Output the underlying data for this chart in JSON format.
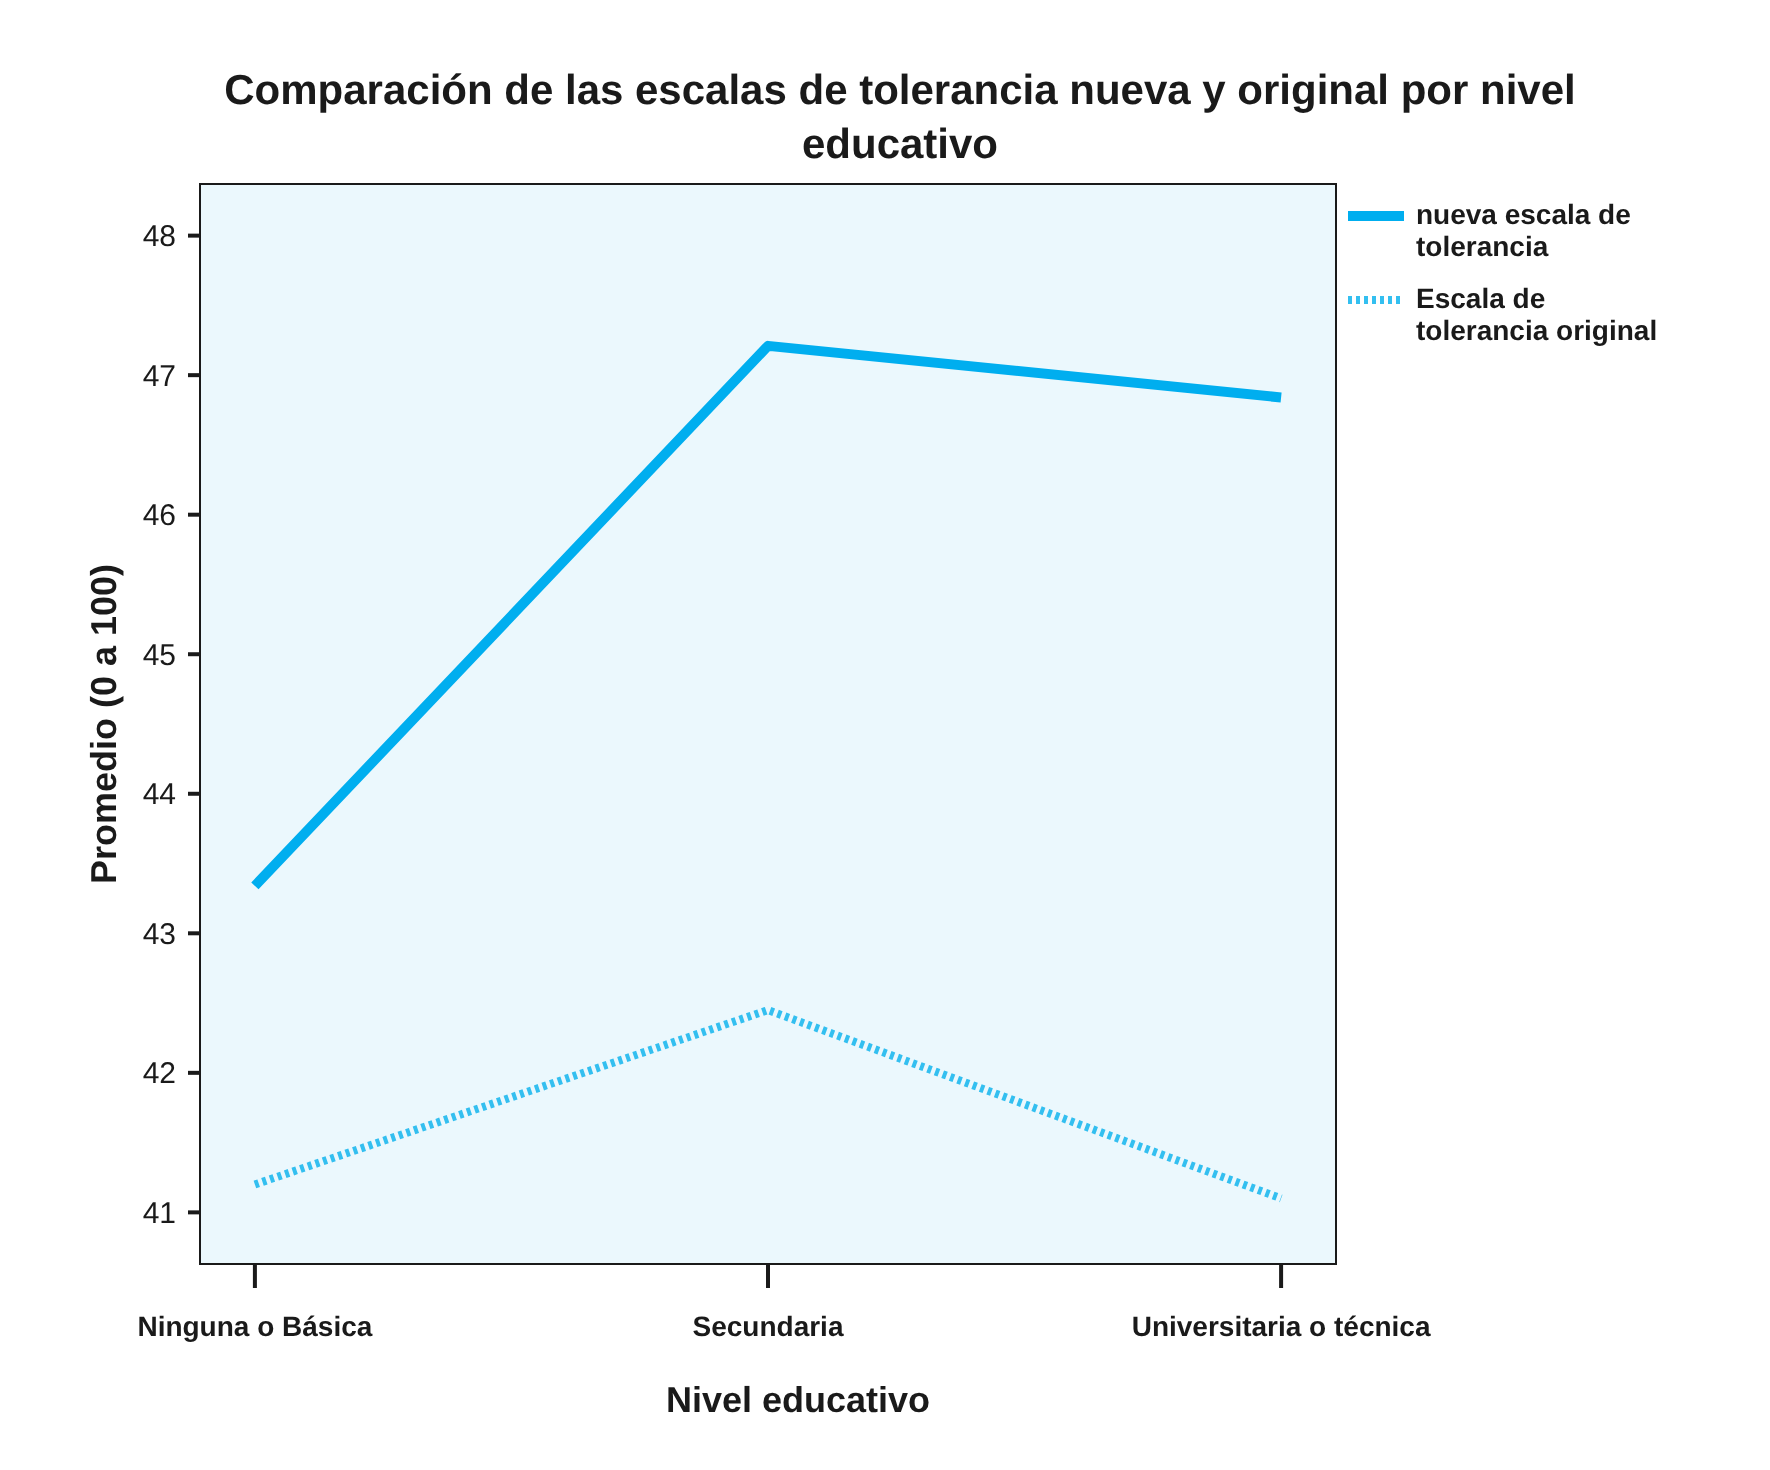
{
  "chart_data": {
    "type": "line",
    "title": "Comparación de las escalas de tolerancia nueva y original por nivel educativo",
    "xlabel": "Nivel educativo",
    "ylabel": "Promedio  (0 a 100)",
    "categories": [
      "Ninguna o Básica",
      "Secundaria",
      "Universitaria o técnica"
    ],
    "series": [
      {
        "name": "nueva escala de tolerancia",
        "color": "#00aeef",
        "values": [
          43.34,
          47.21,
          46.84
        ],
        "line_style": "solid"
      },
      {
        "name": "Escala de tolerancia original",
        "color": "#33bff0",
        "values": [
          41.2,
          42.45,
          41.1
        ],
        "line_style": "dotted"
      }
    ],
    "ylim": [
      40.63,
      48.37
    ],
    "yticks": [
      41,
      42,
      43,
      44,
      45,
      46,
      47,
      48
    ],
    "grid": false,
    "legend": "top right"
  }
}
